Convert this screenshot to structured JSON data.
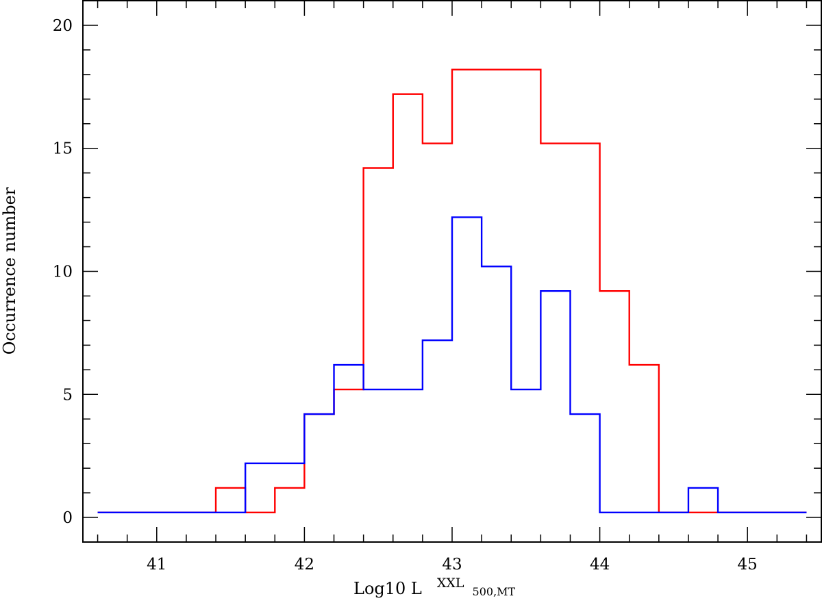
{
  "chart_data": {
    "type": "histogram-step",
    "xlabel": "Log10 L",
    "xlabel_superscript": "XXL",
    "xlabel_subscript": "500,MT",
    "ylabel": "Occurrence number",
    "xlim": [
      40.5,
      45.5
    ],
    "ylim": [
      -1,
      21
    ],
    "x_ticks": [
      "41",
      "42",
      "43",
      "44",
      "45"
    ],
    "y_ticks": [
      "0",
      "5",
      "10",
      "15",
      "20"
    ],
    "series": [
      {
        "color": "#ff0000",
        "bin_edges": [
          40.6,
          41.4,
          41.6,
          41.8,
          42.0,
          42.2,
          42.4,
          42.6,
          42.8,
          43.0,
          43.2,
          43.4,
          43.6,
          43.8,
          44.0,
          44.2,
          44.4,
          44.6,
          44.8,
          45.4
        ],
        "counts": [
          0,
          1,
          0,
          1,
          4,
          5,
          14,
          17,
          15,
          18,
          18,
          18,
          15,
          15,
          9,
          6,
          0,
          0,
          0
        ]
      },
      {
        "color": "#0000ff",
        "bin_edges": [
          40.6,
          41.4,
          41.6,
          41.8,
          42.0,
          42.2,
          42.4,
          42.6,
          42.8,
          43.0,
          43.2,
          43.4,
          43.6,
          43.8,
          44.0,
          44.2,
          44.4,
          44.6,
          44.8,
          45.4
        ],
        "counts": [
          0,
          0,
          2,
          2,
          4,
          6,
          5,
          5,
          7,
          12,
          10,
          5,
          9,
          4,
          0,
          0,
          0,
          1,
          0
        ]
      }
    ]
  }
}
